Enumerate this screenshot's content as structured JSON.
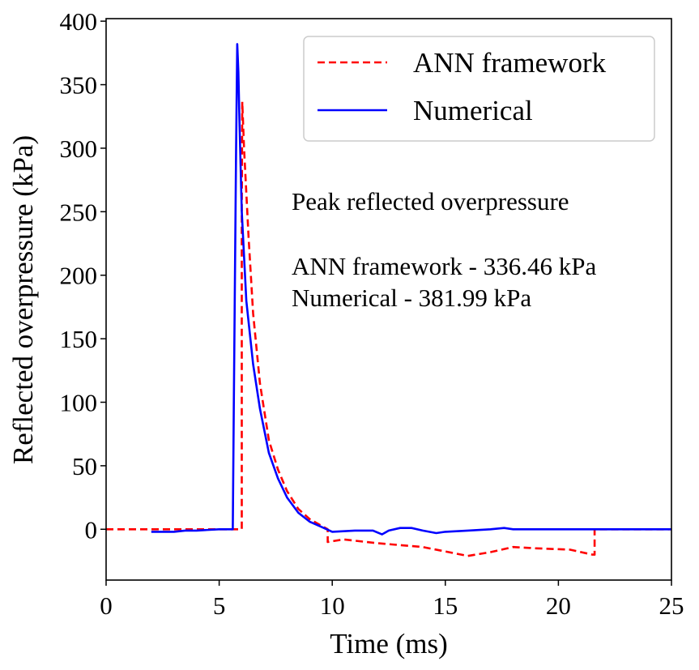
{
  "chart_data": {
    "type": "line",
    "xlabel": "Time (ms)",
    "ylabel": "Reflected overpressure (kPa)",
    "xlim": [
      0,
      25
    ],
    "ylim": [
      -40,
      402
    ],
    "xticks": [
      0,
      5,
      10,
      15,
      20,
      25
    ],
    "yticks": [
      0,
      50,
      100,
      150,
      200,
      250,
      300,
      350,
      400
    ],
    "grid": false,
    "legend_position": "top-right",
    "annotations": [
      "Peak reflected overpressure",
      "ANN framework - 336.46 kPa",
      "Numerical - 381.99 kPa"
    ],
    "series": [
      {
        "name": "ANN framework",
        "color": "#ff0000",
        "style": "dashed",
        "x": [
          0.0,
          2.0,
          5.0,
          5.95,
          6.0,
          6.0,
          6.02,
          6.1,
          6.3,
          6.5,
          6.8,
          7.2,
          7.6,
          8.0,
          8.5,
          9.0,
          9.5,
          9.8,
          9.8,
          10.5,
          12.0,
          14.0,
          16.0,
          17.0,
          18.0,
          19.0,
          20.5,
          21.5,
          21.6,
          21.6,
          25.0
        ],
        "y": [
          0,
          0,
          0,
          0,
          0,
          250,
          336.46,
          300,
          230,
          170,
          115,
          70,
          47,
          30,
          16,
          8,
          3,
          0,
          -10,
          -8,
          -11,
          -14,
          -21,
          -18,
          -14,
          -15,
          -16,
          -20,
          -20,
          0,
          0
        ]
      },
      {
        "name": "Numerical",
        "color": "#0000ff",
        "style": "solid",
        "x": [
          2.0,
          3.0,
          3.5,
          4.0,
          5.0,
          5.5,
          5.6,
          5.65,
          5.75,
          5.8,
          5.85,
          5.9,
          6.0,
          6.2,
          6.5,
          6.8,
          7.2,
          7.6,
          8.0,
          8.5,
          9.0,
          9.5,
          10.0,
          11.0,
          11.8,
          12.2,
          12.5,
          13.0,
          13.5,
          14.0,
          14.6,
          15.0,
          16.0,
          17.0,
          17.6,
          18.0,
          19.0,
          20.0,
          21.0,
          22.0,
          25.0
        ],
        "y": [
          -2,
          -2,
          -1,
          -1,
          0,
          0,
          0,
          100,
          300,
          381.99,
          360,
          320,
          250,
          180,
          130,
          95,
          60,
          40,
          25,
          13,
          6,
          2,
          -2,
          -1,
          -1,
          -4,
          -1,
          1,
          1,
          -1,
          -3,
          -2,
          -1,
          0,
          1,
          0,
          0,
          0,
          0,
          0,
          0
        ]
      }
    ]
  }
}
